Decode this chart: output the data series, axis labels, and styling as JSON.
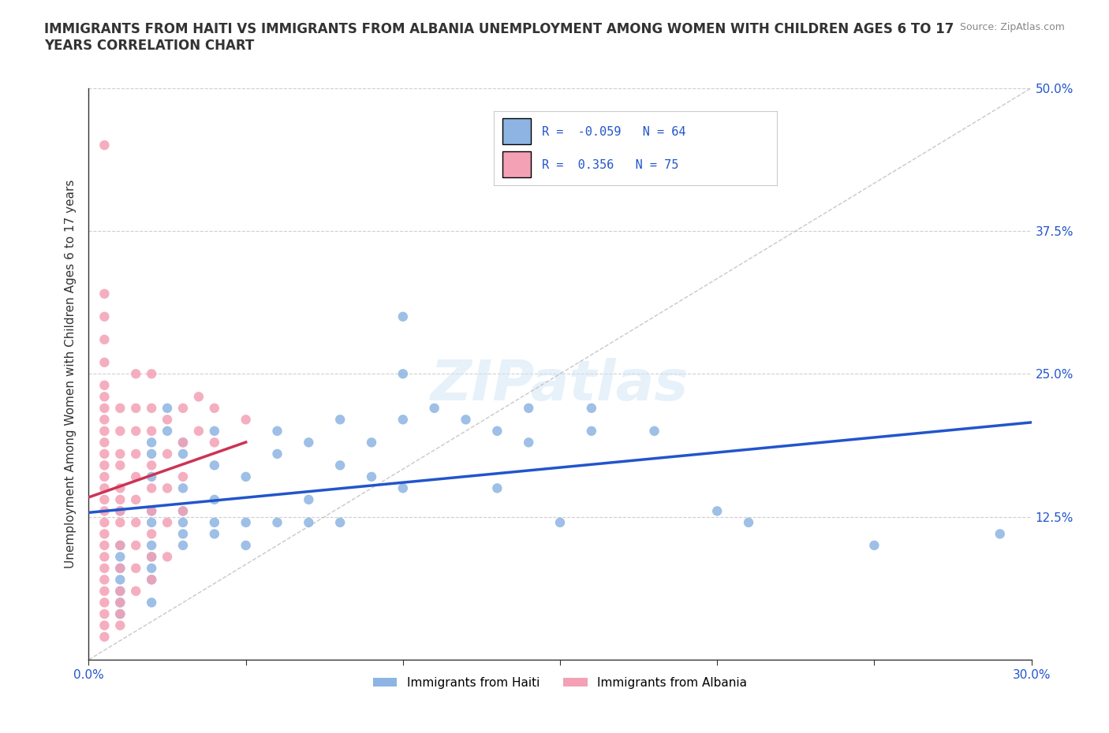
{
  "title": "IMMIGRANTS FROM HAITI VS IMMIGRANTS FROM ALBANIA UNEMPLOYMENT AMONG WOMEN WITH CHILDREN AGES 6 TO 17\nYEARS CORRELATION CHART",
  "source": "Source: ZipAtlas.com",
  "ylabel": "Unemployment Among Women with Children Ages 6 to 17 years",
  "xlim": [
    0.0,
    0.3
  ],
  "ylim": [
    0.0,
    0.5
  ],
  "haiti_color": "#8db4e2",
  "albania_color": "#f4a0b5",
  "haiti_trend_color": "#2255cc",
  "albania_trend_color": "#cc3355",
  "haiti_R": -0.059,
  "haiti_N": 64,
  "albania_R": 0.356,
  "albania_N": 75,
  "watermark": "ZIPatlas",
  "haiti_points": [
    [
      0.01,
      0.13
    ],
    [
      0.01,
      0.1
    ],
    [
      0.01,
      0.09
    ],
    [
      0.01,
      0.08
    ],
    [
      0.01,
      0.07
    ],
    [
      0.01,
      0.06
    ],
    [
      0.01,
      0.05
    ],
    [
      0.01,
      0.04
    ],
    [
      0.02,
      0.19
    ],
    [
      0.02,
      0.18
    ],
    [
      0.02,
      0.16
    ],
    [
      0.02,
      0.13
    ],
    [
      0.02,
      0.12
    ],
    [
      0.02,
      0.1
    ],
    [
      0.02,
      0.09
    ],
    [
      0.02,
      0.08
    ],
    [
      0.02,
      0.07
    ],
    [
      0.02,
      0.05
    ],
    [
      0.025,
      0.22
    ],
    [
      0.025,
      0.2
    ],
    [
      0.03,
      0.19
    ],
    [
      0.03,
      0.18
    ],
    [
      0.03,
      0.15
    ],
    [
      0.03,
      0.13
    ],
    [
      0.03,
      0.12
    ],
    [
      0.03,
      0.11
    ],
    [
      0.03,
      0.1
    ],
    [
      0.04,
      0.2
    ],
    [
      0.04,
      0.17
    ],
    [
      0.04,
      0.14
    ],
    [
      0.04,
      0.12
    ],
    [
      0.04,
      0.11
    ],
    [
      0.05,
      0.16
    ],
    [
      0.05,
      0.12
    ],
    [
      0.05,
      0.1
    ],
    [
      0.06,
      0.2
    ],
    [
      0.06,
      0.18
    ],
    [
      0.06,
      0.12
    ],
    [
      0.07,
      0.19
    ],
    [
      0.07,
      0.14
    ],
    [
      0.07,
      0.12
    ],
    [
      0.08,
      0.21
    ],
    [
      0.08,
      0.17
    ],
    [
      0.08,
      0.12
    ],
    [
      0.09,
      0.19
    ],
    [
      0.09,
      0.16
    ],
    [
      0.1,
      0.3
    ],
    [
      0.1,
      0.25
    ],
    [
      0.1,
      0.21
    ],
    [
      0.1,
      0.15
    ],
    [
      0.11,
      0.22
    ],
    [
      0.12,
      0.21
    ],
    [
      0.13,
      0.2
    ],
    [
      0.13,
      0.15
    ],
    [
      0.14,
      0.22
    ],
    [
      0.14,
      0.19
    ],
    [
      0.15,
      0.12
    ],
    [
      0.16,
      0.22
    ],
    [
      0.16,
      0.2
    ],
    [
      0.18,
      0.2
    ],
    [
      0.2,
      0.13
    ],
    [
      0.21,
      0.12
    ],
    [
      0.25,
      0.1
    ],
    [
      0.29,
      0.11
    ]
  ],
  "albania_points": [
    [
      0.005,
      0.45
    ],
    [
      0.005,
      0.32
    ],
    [
      0.005,
      0.3
    ],
    [
      0.005,
      0.28
    ],
    [
      0.005,
      0.26
    ],
    [
      0.005,
      0.24
    ],
    [
      0.005,
      0.23
    ],
    [
      0.005,
      0.22
    ],
    [
      0.005,
      0.21
    ],
    [
      0.005,
      0.2
    ],
    [
      0.005,
      0.19
    ],
    [
      0.005,
      0.18
    ],
    [
      0.005,
      0.17
    ],
    [
      0.005,
      0.16
    ],
    [
      0.005,
      0.15
    ],
    [
      0.005,
      0.14
    ],
    [
      0.005,
      0.13
    ],
    [
      0.005,
      0.12
    ],
    [
      0.005,
      0.11
    ],
    [
      0.005,
      0.1
    ],
    [
      0.005,
      0.09
    ],
    [
      0.005,
      0.08
    ],
    [
      0.005,
      0.07
    ],
    [
      0.005,
      0.06
    ],
    [
      0.005,
      0.05
    ],
    [
      0.005,
      0.04
    ],
    [
      0.005,
      0.03
    ],
    [
      0.005,
      0.02
    ],
    [
      0.01,
      0.22
    ],
    [
      0.01,
      0.2
    ],
    [
      0.01,
      0.18
    ],
    [
      0.01,
      0.17
    ],
    [
      0.01,
      0.15
    ],
    [
      0.01,
      0.14
    ],
    [
      0.01,
      0.13
    ],
    [
      0.01,
      0.12
    ],
    [
      0.01,
      0.1
    ],
    [
      0.01,
      0.08
    ],
    [
      0.01,
      0.06
    ],
    [
      0.01,
      0.05
    ],
    [
      0.01,
      0.04
    ],
    [
      0.01,
      0.03
    ],
    [
      0.015,
      0.25
    ],
    [
      0.015,
      0.22
    ],
    [
      0.015,
      0.2
    ],
    [
      0.015,
      0.18
    ],
    [
      0.015,
      0.16
    ],
    [
      0.015,
      0.14
    ],
    [
      0.015,
      0.12
    ],
    [
      0.015,
      0.1
    ],
    [
      0.015,
      0.08
    ],
    [
      0.015,
      0.06
    ],
    [
      0.02,
      0.25
    ],
    [
      0.02,
      0.22
    ],
    [
      0.02,
      0.2
    ],
    [
      0.02,
      0.17
    ],
    [
      0.02,
      0.15
    ],
    [
      0.02,
      0.13
    ],
    [
      0.02,
      0.11
    ],
    [
      0.02,
      0.09
    ],
    [
      0.02,
      0.07
    ],
    [
      0.025,
      0.21
    ],
    [
      0.025,
      0.18
    ],
    [
      0.025,
      0.15
    ],
    [
      0.025,
      0.12
    ],
    [
      0.025,
      0.09
    ],
    [
      0.03,
      0.22
    ],
    [
      0.03,
      0.19
    ],
    [
      0.03,
      0.16
    ],
    [
      0.03,
      0.13
    ],
    [
      0.035,
      0.23
    ],
    [
      0.035,
      0.2
    ],
    [
      0.04,
      0.22
    ],
    [
      0.04,
      0.19
    ],
    [
      0.05,
      0.21
    ]
  ]
}
